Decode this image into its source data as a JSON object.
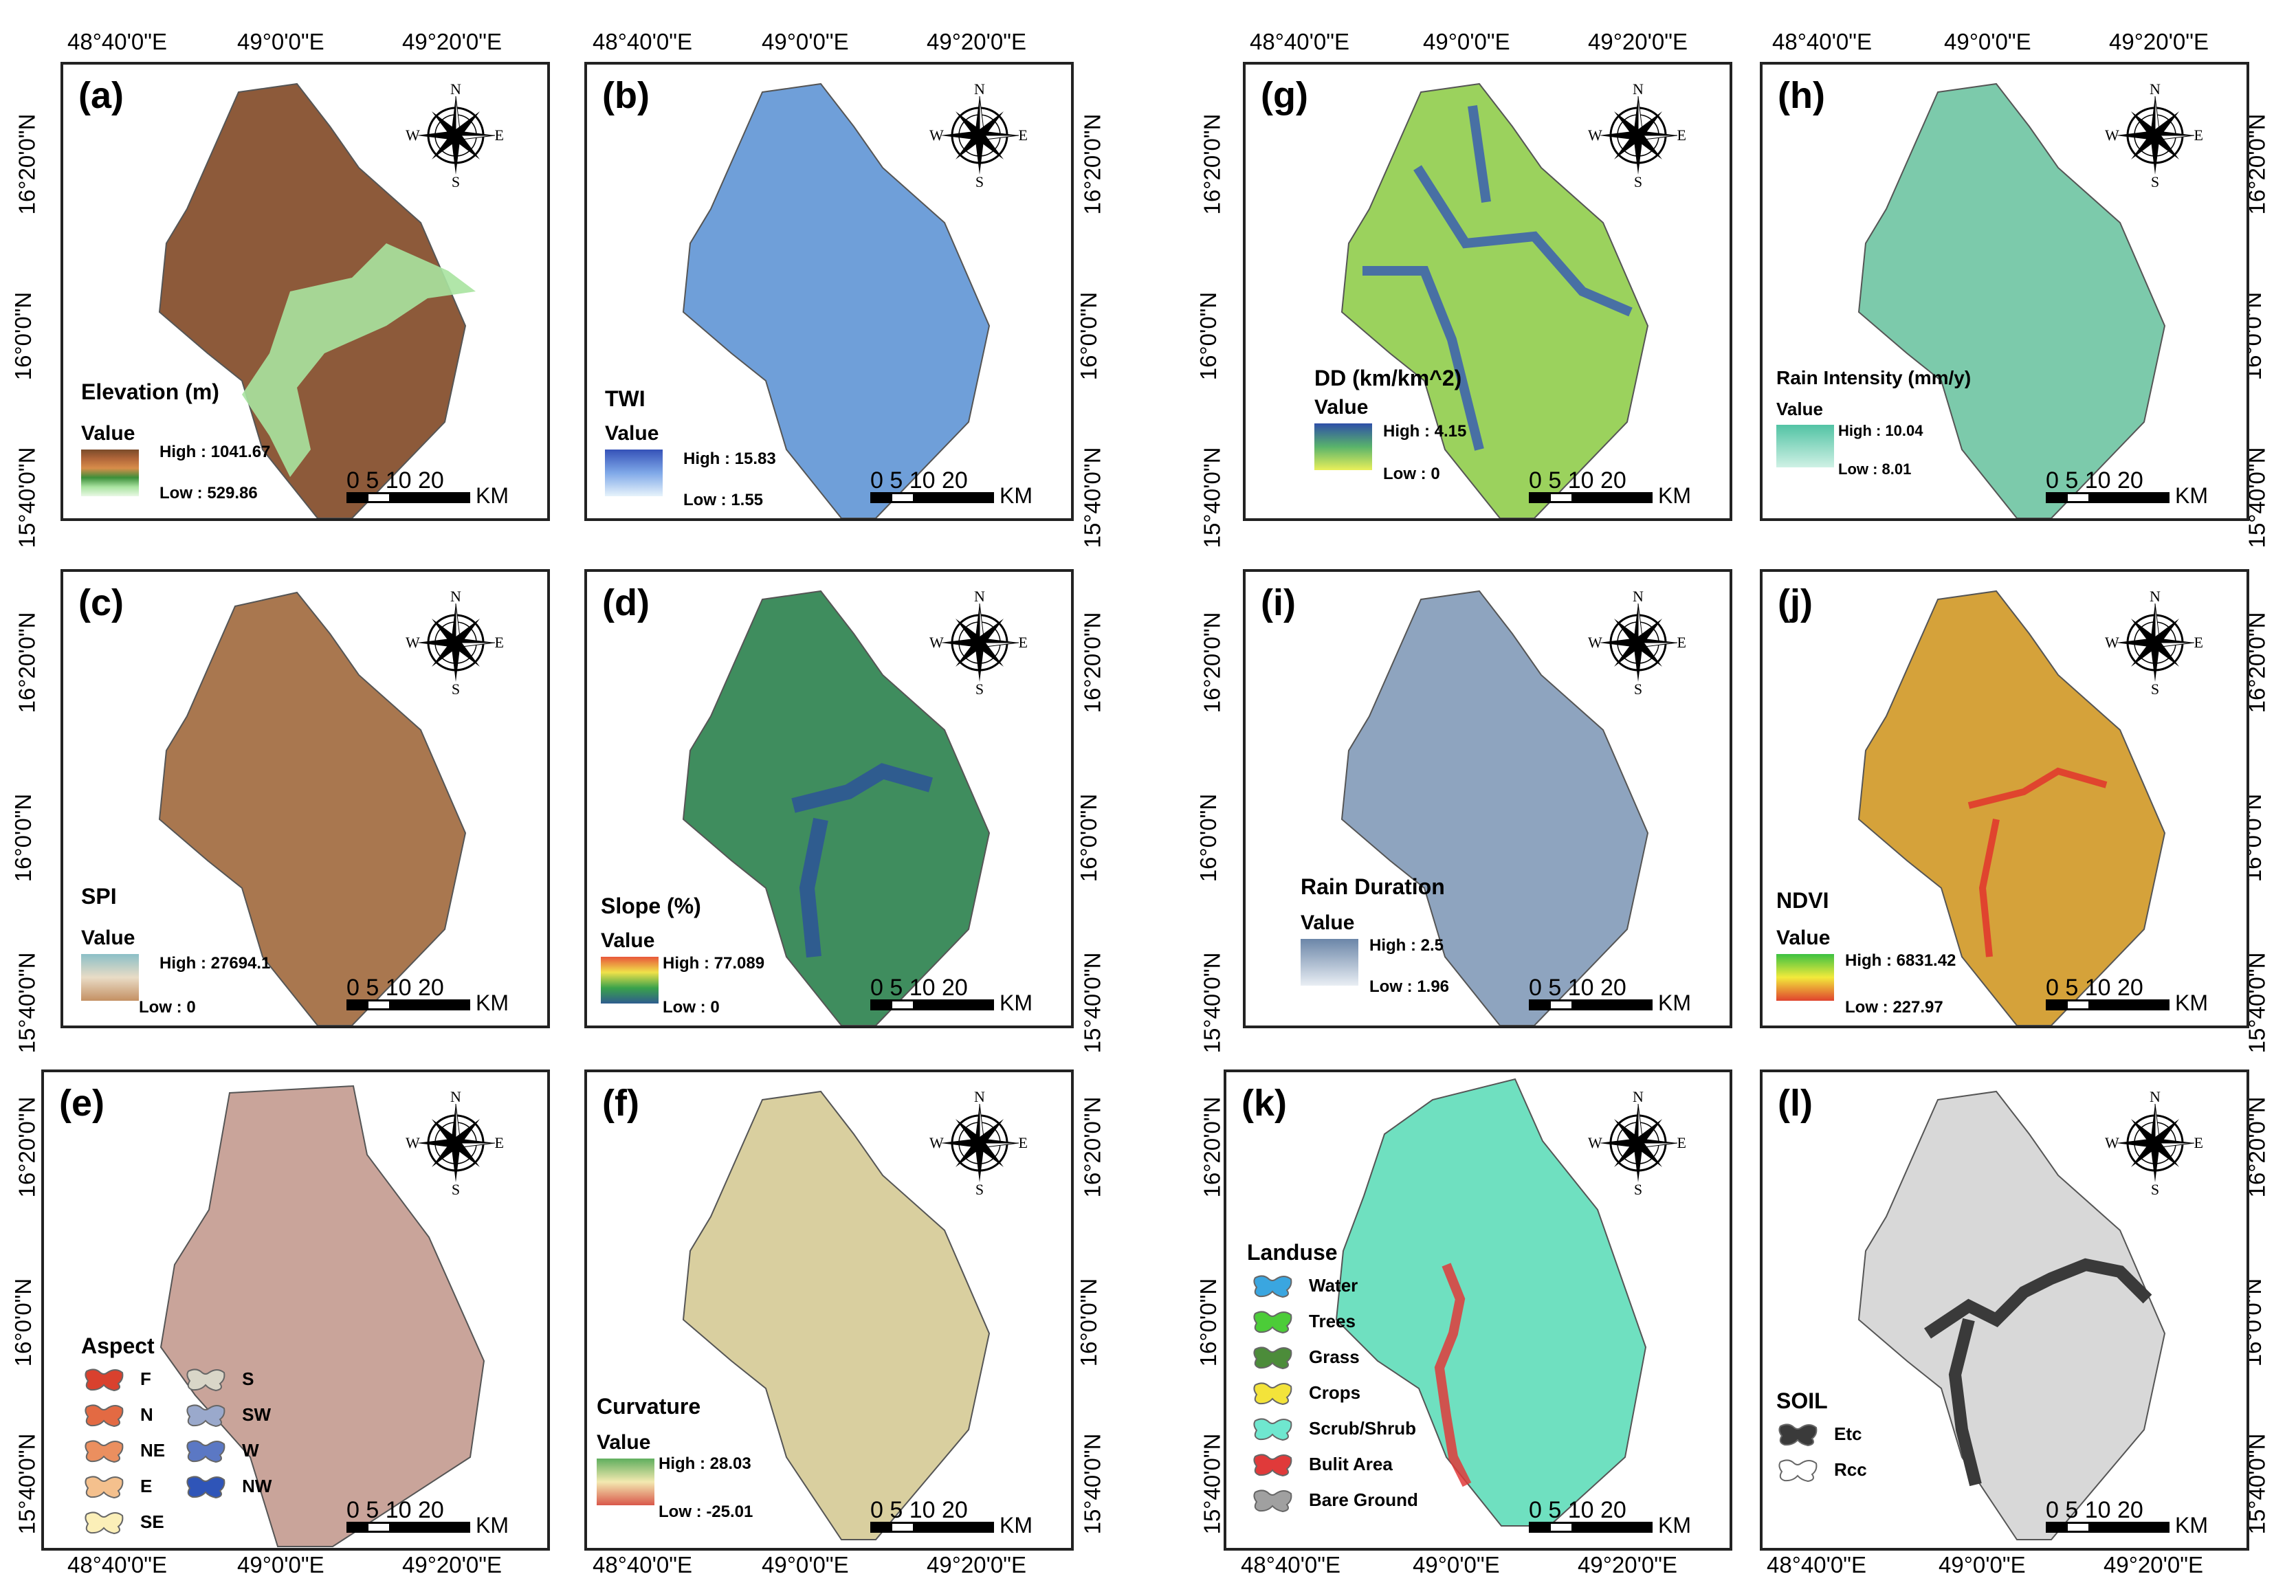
{
  "coords": {
    "left_top_lon": [
      "48°40'0\"E",
      "49°0'0\"E",
      "49°20'0\"E"
    ],
    "left_bottom_lon": [
      "48°40'0\"E",
      "49°0'0\"E",
      "49°20'0\"E"
    ],
    "right_top_lon": [
      "48°40'0\"E",
      "49°0'0\"E",
      "49°20'0\"E"
    ],
    "right_bottom_lon": [
      "48°40'0\"E",
      "49°0'0\"E",
      "49°20'0\"E"
    ],
    "middle_top_left_lon": [
      "48°40'0\"E",
      "49°0'0\"E",
      "49°20'0\"E"
    ],
    "middle_top_right_lon": [
      "48°40'0\"E",
      "49°0'0\"E",
      "49°20'0\"E"
    ],
    "middle_bottom_left_lon": [
      "48°40'0\"E",
      "49°0'0\"E",
      "49°20'0\"E"
    ],
    "middle_bottom_right_lon": [
      "48°40'0\"E",
      "49°0'0\"E",
      "49°20'0\"E"
    ],
    "lat": [
      "16°20'0\"N",
      "16°0'0\"N",
      "15°40'0\"N"
    ]
  },
  "compass": {
    "n": "N",
    "s": "S",
    "e": "E",
    "w": "W"
  },
  "scalebar": {
    "numbers": "0  5 10      20",
    "unit": "KM"
  },
  "panels": {
    "a": {
      "label": "(a)",
      "legend_title": "Elevation (m)",
      "value_label": "Value",
      "high": "High : 1041.67",
      "low": "Low : 529.86",
      "ramp": [
        "#7a4b2a",
        "#b2673a",
        "#d88d4a",
        "#3d8f3a",
        "#a9e3a0",
        "#e9f8e5"
      ],
      "map_fill": "#8d5a3a"
    },
    "b": {
      "label": "(b)",
      "legend_title": "TWI",
      "value_label": "Value",
      "high": "High : 15.83",
      "low": "Low : 1.55",
      "ramp": [
        "#3552b8",
        "#7fa8e8",
        "#e7f3fb"
      ],
      "map_fill": "#6f9fd9"
    },
    "c": {
      "label": "(c)",
      "legend_title": "SPI",
      "value_label": "Value",
      "high": "High : 27694.1",
      "low": "Low : 0",
      "ramp": [
        "#8bbfc7",
        "#e9dcc6",
        "#c49063"
      ],
      "map_fill": "#a9774f"
    },
    "d": {
      "label": "(d)",
      "legend_title": "Slope (%)",
      "value_label": "Value",
      "high": "High : 77.089",
      "low": "Low : 0",
      "ramp": [
        "#e8573a",
        "#f0e14a",
        "#3aa24b",
        "#2f5c8f"
      ],
      "map_fill": "#3f8d5e"
    },
    "e": {
      "label": "(e)",
      "legend_title": "Aspect",
      "map_fill": "#c9a49a",
      "classes": [
        {
          "name": "F",
          "color": "#d9412e"
        },
        {
          "name": "N",
          "color": "#e36a43"
        },
        {
          "name": "NE",
          "color": "#eb8f5f"
        },
        {
          "name": "E",
          "color": "#f4c08d"
        },
        {
          "name": "SE",
          "color": "#fbefb8"
        },
        {
          "name": "S",
          "color": "#d9d6c8"
        },
        {
          "name": "SW",
          "color": "#9aa9cc"
        },
        {
          "name": "W",
          "color": "#5b78c4"
        },
        {
          "name": "NW",
          "color": "#2f55b8"
        }
      ]
    },
    "f": {
      "label": "(f)",
      "legend_title": "Curvature",
      "value_label": "Value",
      "high": "High : 28.03",
      "low": "Low : -25.01",
      "ramp": [
        "#5fae5e",
        "#f3e9b0",
        "#d9584a"
      ],
      "map_fill": "#d9cf9f"
    },
    "g": {
      "label": "(g)",
      "legend_title": "DD (km/km^2)",
      "value_label": "Value",
      "high": "High : 4.15",
      "low": "Low : 0",
      "ramp": [
        "#2e4fa8",
        "#59b36b",
        "#e9f05a"
      ],
      "map_fill": "#9bd25d"
    },
    "h": {
      "label": "(h)",
      "legend_title": "Rain Intensity (mm/y)",
      "value_label": "Value",
      "high": "High : 10.04",
      "low": "Low : 8.01",
      "ramp": [
        "#52c3a4",
        "#cff1e5"
      ],
      "map_fill": "#7ccaab"
    },
    "i": {
      "label": "(i)",
      "legend_title": "Rain Duration",
      "value_label": "Value",
      "high": "High : 2.5",
      "low": "Low : 1.96",
      "ramp": [
        "#6b86a8",
        "#e9eef4"
      ],
      "map_fill": "#8ea4bf"
    },
    "j": {
      "label": "(j)",
      "legend_title": "NDVI",
      "value_label": "Value",
      "high": "High : 6831.42",
      "low": "Low : 227.97",
      "ramp": [
        "#3cc142",
        "#f2ea3b",
        "#e0442e"
      ],
      "map_fill": "#d5a23a"
    },
    "k": {
      "label": "(k)",
      "legend_title": "Landuse",
      "map_fill": "#6fe0c0",
      "classes": [
        {
          "name": "Water",
          "color": "#3aa6e0"
        },
        {
          "name": "Trees",
          "color": "#4ccc38"
        },
        {
          "name": "Grass",
          "color": "#4c8c3a"
        },
        {
          "name": "Crops",
          "color": "#f3e33a"
        },
        {
          "name": "Scrub/Shrub",
          "color": "#6fe7cf"
        },
        {
          "name": "Bulit Area",
          "color": "#e03a3a"
        },
        {
          "name": "Bare Ground",
          "color": "#a0a0a0"
        }
      ]
    },
    "l": {
      "label": "(l)",
      "legend_title": "SOIL",
      "map_fill": "#d8d8d8",
      "classes": [
        {
          "name": "Etc",
          "color": "#3a3a3a"
        },
        {
          "name": "Rcc",
          "color": "#ffffff"
        }
      ]
    }
  }
}
